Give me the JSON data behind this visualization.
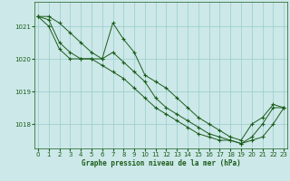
{
  "xlabel": "Graphe pression niveau de la mer (hPa)",
  "background_color": "#cce8e8",
  "grid_color": "#99cccc",
  "line_color": "#1a5c1a",
  "hours": [
    0,
    1,
    2,
    3,
    4,
    5,
    6,
    7,
    8,
    9,
    10,
    11,
    12,
    13,
    14,
    15,
    16,
    17,
    18,
    19,
    20,
    21,
    22,
    23
  ],
  "line1": [
    1021.3,
    1021.3,
    1021.1,
    1020.8,
    1020.5,
    1020.2,
    1020.0,
    1021.1,
    1020.6,
    1020.2,
    1019.5,
    1019.3,
    1019.1,
    1018.8,
    1018.5,
    1018.2,
    1018.0,
    1017.8,
    1017.6,
    1017.5,
    1018.0,
    1018.2,
    1018.6,
    1018.5
  ],
  "line2": [
    1021.3,
    1021.2,
    1020.5,
    1020.2,
    1020.0,
    1020.0,
    1020.0,
    1020.2,
    1019.9,
    1019.6,
    1019.3,
    1018.8,
    1018.5,
    1018.3,
    1018.1,
    1017.9,
    1017.7,
    1017.6,
    1017.5,
    1017.4,
    1017.6,
    1018.0,
    1018.5,
    1018.5
  ],
  "line3": [
    1021.3,
    1021.0,
    1020.3,
    1020.0,
    1020.0,
    1020.0,
    1019.8,
    1019.6,
    1019.4,
    1019.1,
    1018.8,
    1018.5,
    1018.3,
    1018.1,
    1017.9,
    1017.7,
    1017.6,
    1017.5,
    1017.5,
    1017.4,
    1017.5,
    1017.6,
    1018.0,
    1018.5
  ],
  "ylim_min": 1017.25,
  "ylim_max": 1021.75,
  "yticks": [
    1018,
    1019,
    1020,
    1021
  ],
  "xticks": [
    0,
    1,
    2,
    3,
    4,
    5,
    6,
    7,
    8,
    9,
    10,
    11,
    12,
    13,
    14,
    15,
    16,
    17,
    18,
    19,
    20,
    21,
    22,
    23
  ],
  "tick_fontsize": 5,
  "xlabel_fontsize": 5.5
}
